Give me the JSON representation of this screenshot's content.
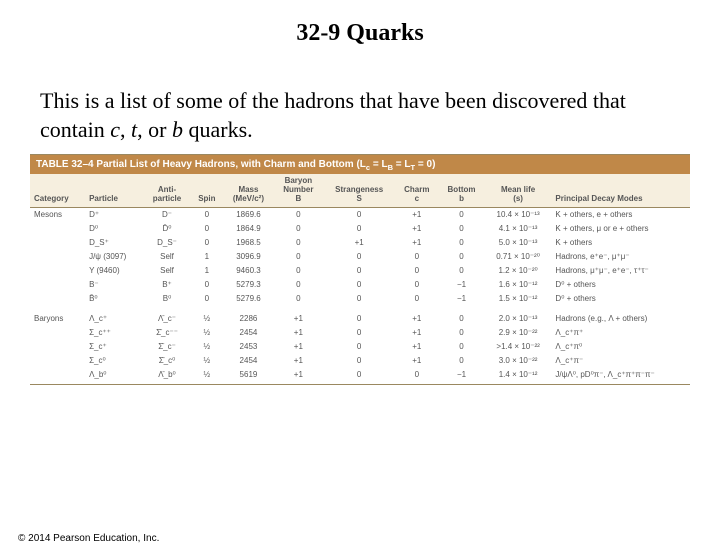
{
  "title": "32-9 Quarks",
  "body": {
    "line": "This is a list of some of the hadrons that have been discovered that contain ",
    "em1": "c",
    "sep1": ", ",
    "em2": "t",
    "sep2": ", or ",
    "em3": "b",
    "tail": " quarks."
  },
  "table": {
    "caption_prefix": "TABLE 32–4",
    "caption_rest": " Partial List of Heavy Hadrons, with Charm and Bottom (L",
    "caption_sub1": "c",
    "caption_mid1": " = L",
    "caption_sub2": "B",
    "caption_mid2": " = L",
    "caption_sub3": "T",
    "caption_end": " = 0)",
    "title_bg": "#c08848",
    "title_color": "#ffffff",
    "head_bg": "#f6efdf",
    "border_color": "#9a8860",
    "text_color": "#565656",
    "columns": [
      "Category",
      "Particle",
      "Anti-\nparticle",
      "Spin",
      "Mass\n(MeV/c²)",
      "Baryon\nNumber\nB",
      "Strangeness\nS",
      "Charm\nc",
      "Bottom\nb",
      "Mean life\n(s)",
      "Principal Decay Modes"
    ],
    "rows": [
      {
        "cat": "Mesons",
        "p": "D⁺",
        "ap": "D⁻",
        "spin": "0",
        "mass": "1869.6",
        "B": "0",
        "S": "0",
        "c": "+1",
        "b": "0",
        "life": "10.4 × 10⁻¹³",
        "decay": "K + others, e + others"
      },
      {
        "cat": "",
        "p": "D⁰",
        "ap": "D̄⁰",
        "spin": "0",
        "mass": "1864.9",
        "B": "0",
        "S": "0",
        "c": "+1",
        "b": "0",
        "life": "4.1 × 10⁻¹³",
        "decay": "K + others, μ or e + others"
      },
      {
        "cat": "",
        "p": "D_S⁺",
        "ap": "D_S⁻",
        "spin": "0",
        "mass": "1968.5",
        "B": "0",
        "S": "+1",
        "c": "+1",
        "b": "0",
        "life": "5.0 × 10⁻¹³",
        "decay": "K + others"
      },
      {
        "cat": "",
        "p": "J/ψ (3097)",
        "ap": "Self",
        "spin": "1",
        "mass": "3096.9",
        "B": "0",
        "S": "0",
        "c": "0",
        "b": "0",
        "life": "0.71 × 10⁻²⁰",
        "decay": "Hadrons, e⁺e⁻, μ⁺μ⁻"
      },
      {
        "cat": "",
        "p": "Y (9460)",
        "ap": "Self",
        "spin": "1",
        "mass": "9460.3",
        "B": "0",
        "S": "0",
        "c": "0",
        "b": "0",
        "life": "1.2 × 10⁻²⁰",
        "decay": "Hadrons, μ⁺μ⁻, e⁺e⁻, τ⁺τ⁻"
      },
      {
        "cat": "",
        "p": "B⁻",
        "ap": "B⁺",
        "spin": "0",
        "mass": "5279.3",
        "B": "0",
        "S": "0",
        "c": "0",
        "b": "−1",
        "life": "1.6 × 10⁻¹²",
        "decay": "D⁰ + others"
      },
      {
        "cat": "",
        "p": "B̄⁰",
        "ap": "B⁰",
        "spin": "0",
        "mass": "5279.6",
        "B": "0",
        "S": "0",
        "c": "0",
        "b": "−1",
        "life": "1.5 × 10⁻¹²",
        "decay": "D⁰ + others"
      },
      {
        "cat": "Baryons",
        "p": "Λ_c⁺",
        "ap": "Λ̄_c⁻",
        "spin": "½",
        "mass": "2286",
        "B": "+1",
        "S": "0",
        "c": "+1",
        "b": "0",
        "life": "2.0 × 10⁻¹³",
        "decay": "Hadrons (e.g., Λ + others)"
      },
      {
        "cat": "",
        "p": "Σ_c⁺⁺",
        "ap": "Σ̄_c⁻⁻",
        "spin": "½",
        "mass": "2454",
        "B": "+1",
        "S": "0",
        "c": "+1",
        "b": "0",
        "life": "2.9 × 10⁻²²",
        "decay": "Λ_c⁺π⁺"
      },
      {
        "cat": "",
        "p": "Σ_c⁺",
        "ap": "Σ̄_c⁻",
        "spin": "½",
        "mass": "2453",
        "B": "+1",
        "S": "0",
        "c": "+1",
        "b": "0",
        "life": ">1.4 × 10⁻²²",
        "decay": "Λ_c⁺π⁰"
      },
      {
        "cat": "",
        "p": "Σ_c⁰",
        "ap": "Σ̄_c⁰",
        "spin": "½",
        "mass": "2454",
        "B": "+1",
        "S": "0",
        "c": "+1",
        "b": "0",
        "life": "3.0 × 10⁻²²",
        "decay": "Λ_c⁺π⁻"
      },
      {
        "cat": "",
        "p": "Λ_b⁰",
        "ap": "Λ̄_b⁰",
        "spin": "½",
        "mass": "5619",
        "B": "+1",
        "S": "0",
        "c": "0",
        "b": "−1",
        "life": "1.4 × 10⁻¹²",
        "decay": "J/ψΛ⁰, pD⁰π⁻, Λ_c⁺π⁺π⁻π⁻"
      }
    ]
  },
  "copyright": "© 2014 Pearson Education, Inc."
}
